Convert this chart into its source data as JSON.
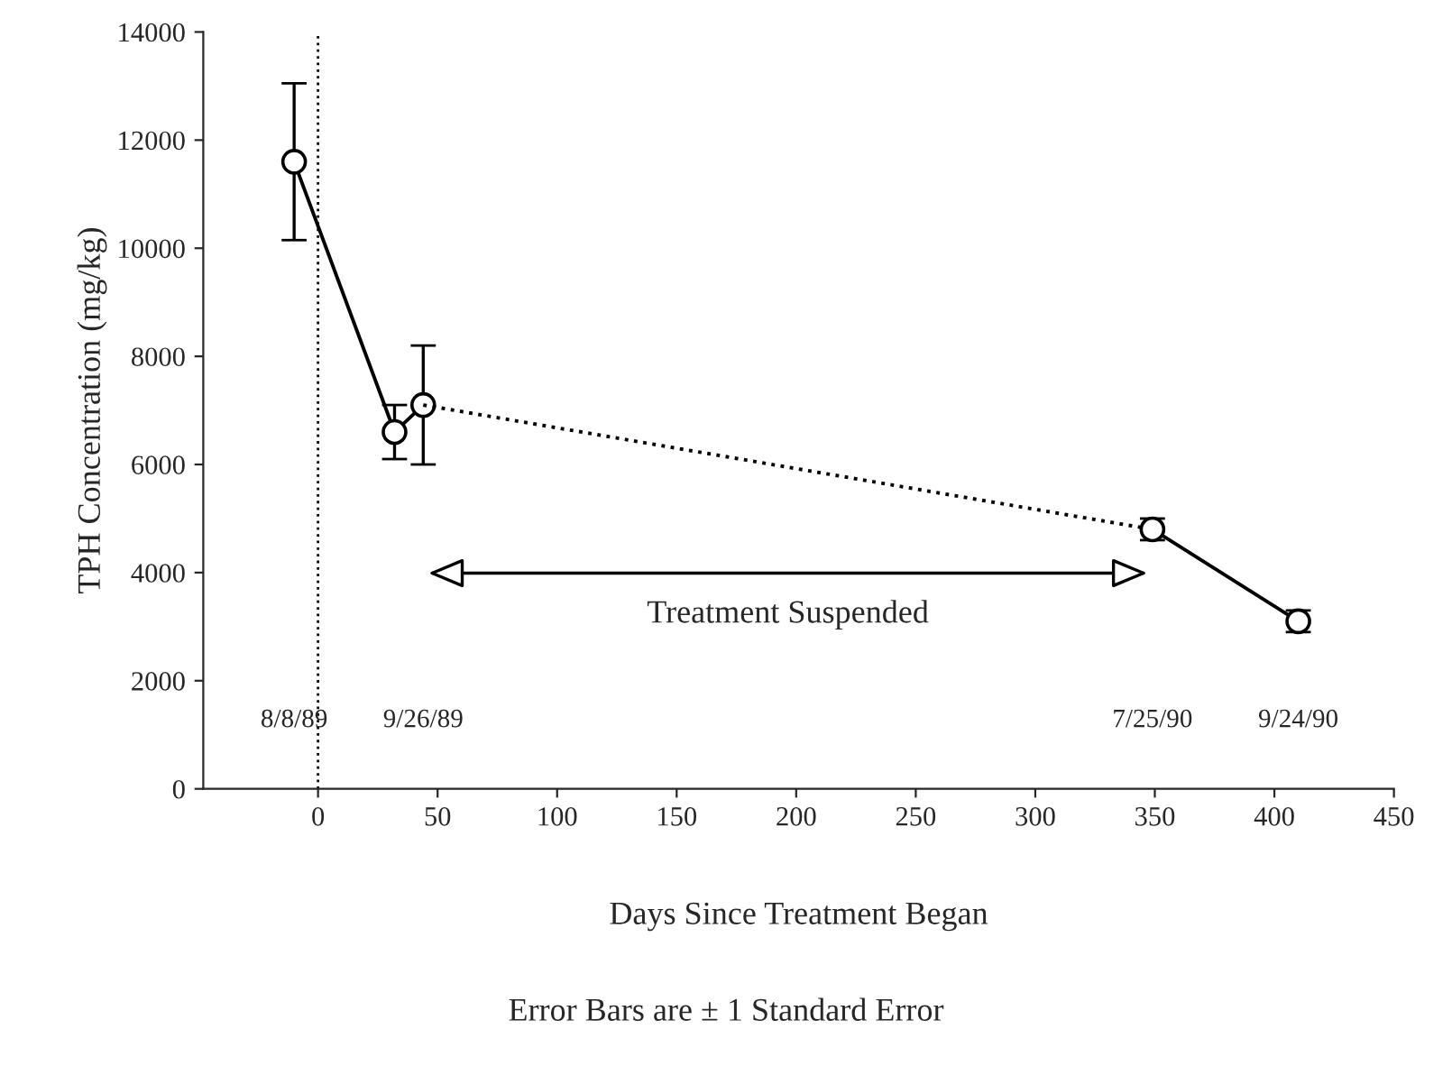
{
  "chart_data": {
    "type": "line",
    "xlabel": "Days Since Treatment Began",
    "ylabel": "TPH Concentration (mg/kg)",
    "xlim": [
      -48,
      450
    ],
    "xticks": [
      0,
      50,
      100,
      150,
      200,
      250,
      300,
      350,
      400,
      450
    ],
    "ylim": [
      0,
      14000
    ],
    "yticks": [
      0,
      2000,
      4000,
      6000,
      8000,
      10000,
      12000,
      14000
    ],
    "grid": false,
    "series": [
      {
        "color": "#000000",
        "x": [
          -10,
          32,
          44
        ],
        "values": [
          11600,
          6600,
          7100
        ],
        "errors": [
          1450,
          500,
          1100
        ],
        "marker": "circle",
        "line_style": "solid"
      },
      {
        "color": "#000000",
        "x": [
          44,
          349
        ],
        "values": [
          7100,
          4800
        ],
        "line_style": "dotted"
      },
      {
        "color": "#000000",
        "x": [
          349,
          410
        ],
        "values": [
          4800,
          3100
        ],
        "errors": [
          200,
          200
        ],
        "marker": "circle",
        "line_style": "solid"
      }
    ],
    "ref_lines": [
      {
        "axis": "x",
        "value": 0,
        "line_style": "dotted",
        "color": "#000000"
      }
    ],
    "annotations": [
      "8/8/89",
      "9/26/89",
      "7/25/90",
      "9/24/90",
      "Treatment Suspended",
      "Error Bars are ± 1 Standard Error"
    ]
  }
}
